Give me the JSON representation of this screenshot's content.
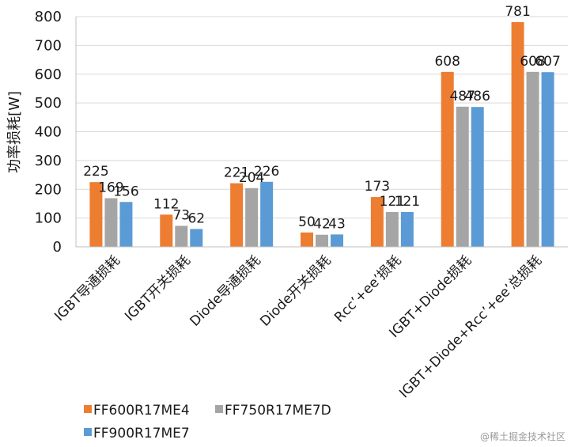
{
  "chart_data": {
    "type": "bar",
    "title": "",
    "xlabel": "",
    "ylabel": "功率损耗[W]",
    "ylim": [
      0,
      800
    ],
    "yticks": [
      0,
      100,
      200,
      300,
      400,
      500,
      600,
      700,
      800
    ],
    "categories": [
      "IGBT导通损耗",
      "IGBT开关损耗",
      "Diode导通损耗",
      "Diode开关损耗",
      "Rcc’+ee’损耗",
      "IGBT+Diode损耗",
      "IGBT+Diode+Rcc’+ee’总损耗"
    ],
    "series": [
      {
        "name": "FF600R17ME4",
        "color": "#ED7D31",
        "values": [
          225,
          112,
          221,
          50,
          173,
          608,
          781
        ]
      },
      {
        "name": "FF750R17ME7D",
        "color": "#A5A5A5",
        "values": [
          169,
          73,
          204,
          42,
          121,
          487,
          608
        ]
      },
      {
        "name": "FF900R17ME7",
        "color": "#5B9BD5",
        "values": [
          156,
          62,
          226,
          43,
          121,
          486,
          607
        ]
      }
    ],
    "grid": true,
    "legend": "bottom"
  },
  "watermark": "@稀土掘金技术社区"
}
